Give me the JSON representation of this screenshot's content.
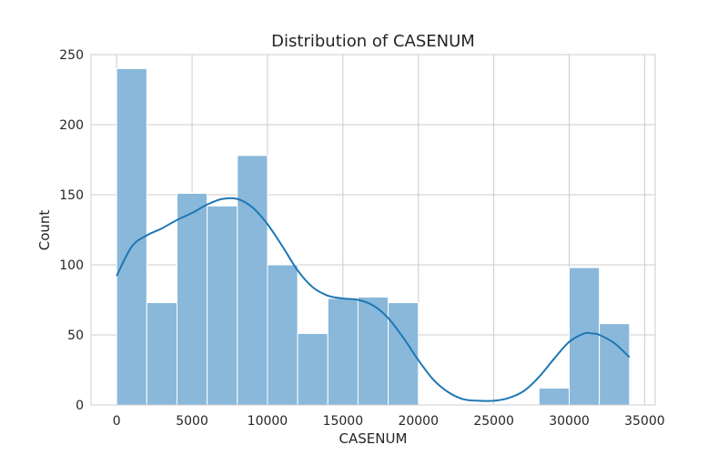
{
  "chart_data": {
    "type": "bar",
    "title": "Distribution of CASENUM",
    "xlabel": "CASENUM",
    "ylabel": "Count",
    "xlim": [
      -1700,
      35700
    ],
    "ylim": [
      0,
      250
    ],
    "xticks": [
      0,
      5000,
      10000,
      15000,
      20000,
      25000,
      30000,
      35000
    ],
    "yticks": [
      0,
      50,
      100,
      150,
      200,
      250
    ],
    "grid": true,
    "bin_width": 2000,
    "bins": [
      {
        "start": 0,
        "end": 2000,
        "count": 240
      },
      {
        "start": 2000,
        "end": 4000,
        "count": 73
      },
      {
        "start": 4000,
        "end": 6000,
        "count": 151
      },
      {
        "start": 6000,
        "end": 8000,
        "count": 142
      },
      {
        "start": 8000,
        "end": 10000,
        "count": 178
      },
      {
        "start": 10000,
        "end": 12000,
        "count": 100
      },
      {
        "start": 12000,
        "end": 14000,
        "count": 51
      },
      {
        "start": 14000,
        "end": 16000,
        "count": 76
      },
      {
        "start": 16000,
        "end": 18000,
        "count": 77
      },
      {
        "start": 18000,
        "end": 20000,
        "count": 73
      },
      {
        "start": 20000,
        "end": 22000,
        "count": 0
      },
      {
        "start": 22000,
        "end": 24000,
        "count": 0
      },
      {
        "start": 24000,
        "end": 26000,
        "count": 0
      },
      {
        "start": 26000,
        "end": 28000,
        "count": 0
      },
      {
        "start": 28000,
        "end": 30000,
        "count": 12
      },
      {
        "start": 30000,
        "end": 32000,
        "count": 98
      },
      {
        "start": 32000,
        "end": 34000,
        "count": 58
      }
    ],
    "kde": {
      "x": [
        0,
        1000,
        2000,
        3000,
        4000,
        5000,
        6000,
        7000,
        8000,
        9000,
        10000,
        11000,
        12000,
        13000,
        14000,
        15000,
        16000,
        17000,
        18000,
        19000,
        20000,
        21000,
        22000,
        23000,
        24000,
        25000,
        26000,
        27000,
        28000,
        29000,
        30000,
        31000,
        31500,
        32000,
        33000,
        34000
      ],
      "y": [
        92,
        113,
        121,
        126,
        132,
        137,
        143,
        147,
        147,
        141,
        129,
        113,
        96,
        84,
        78,
        76,
        75,
        71,
        62,
        48,
        32,
        18,
        9,
        4,
        3,
        3,
        5,
        10,
        20,
        33,
        45,
        51,
        51,
        50,
        44,
        34
      ]
    },
    "bar_color": "#89b8da",
    "bar_edge": "#ffffff",
    "line_color": "#1f77b4"
  }
}
